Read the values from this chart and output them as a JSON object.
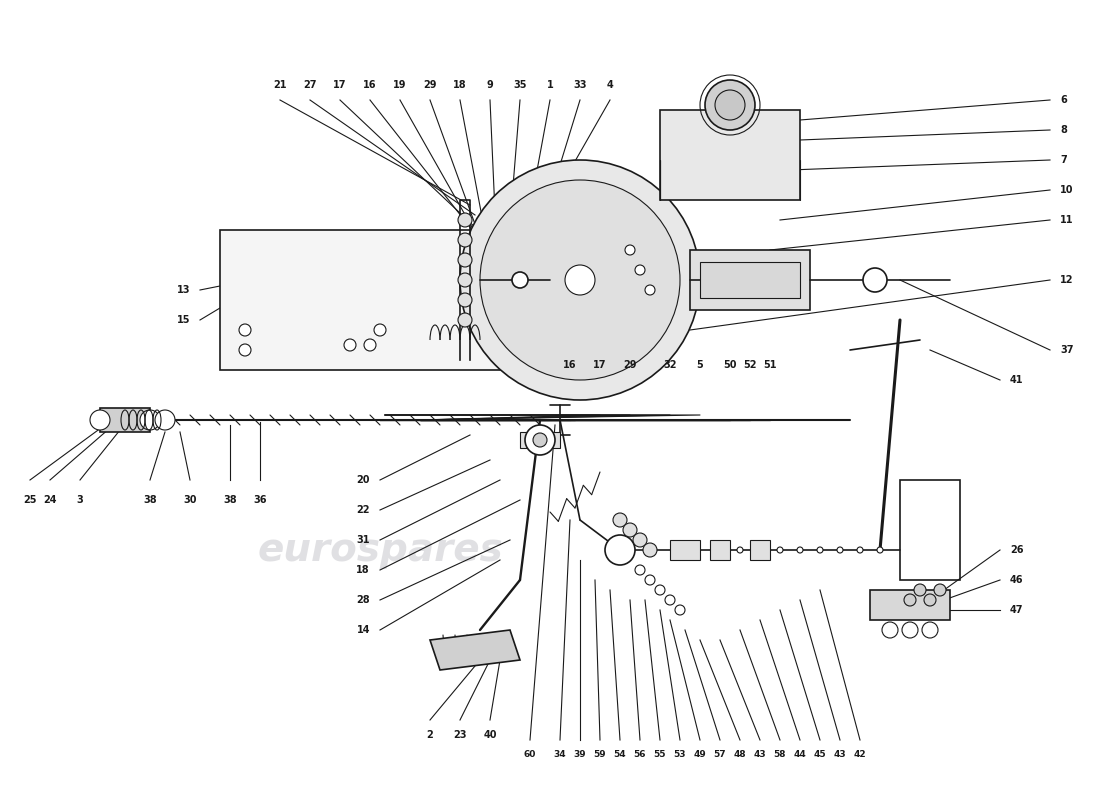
{
  "title": "",
  "background_color": "#ffffff",
  "watermark_text": "eurospares",
  "watermark_color": "#d0d0d0",
  "line_color": "#1a1a1a",
  "text_color": "#1a1a1a",
  "fig_width": 11.0,
  "fig_height": 8.0,
  "dpi": 100
}
